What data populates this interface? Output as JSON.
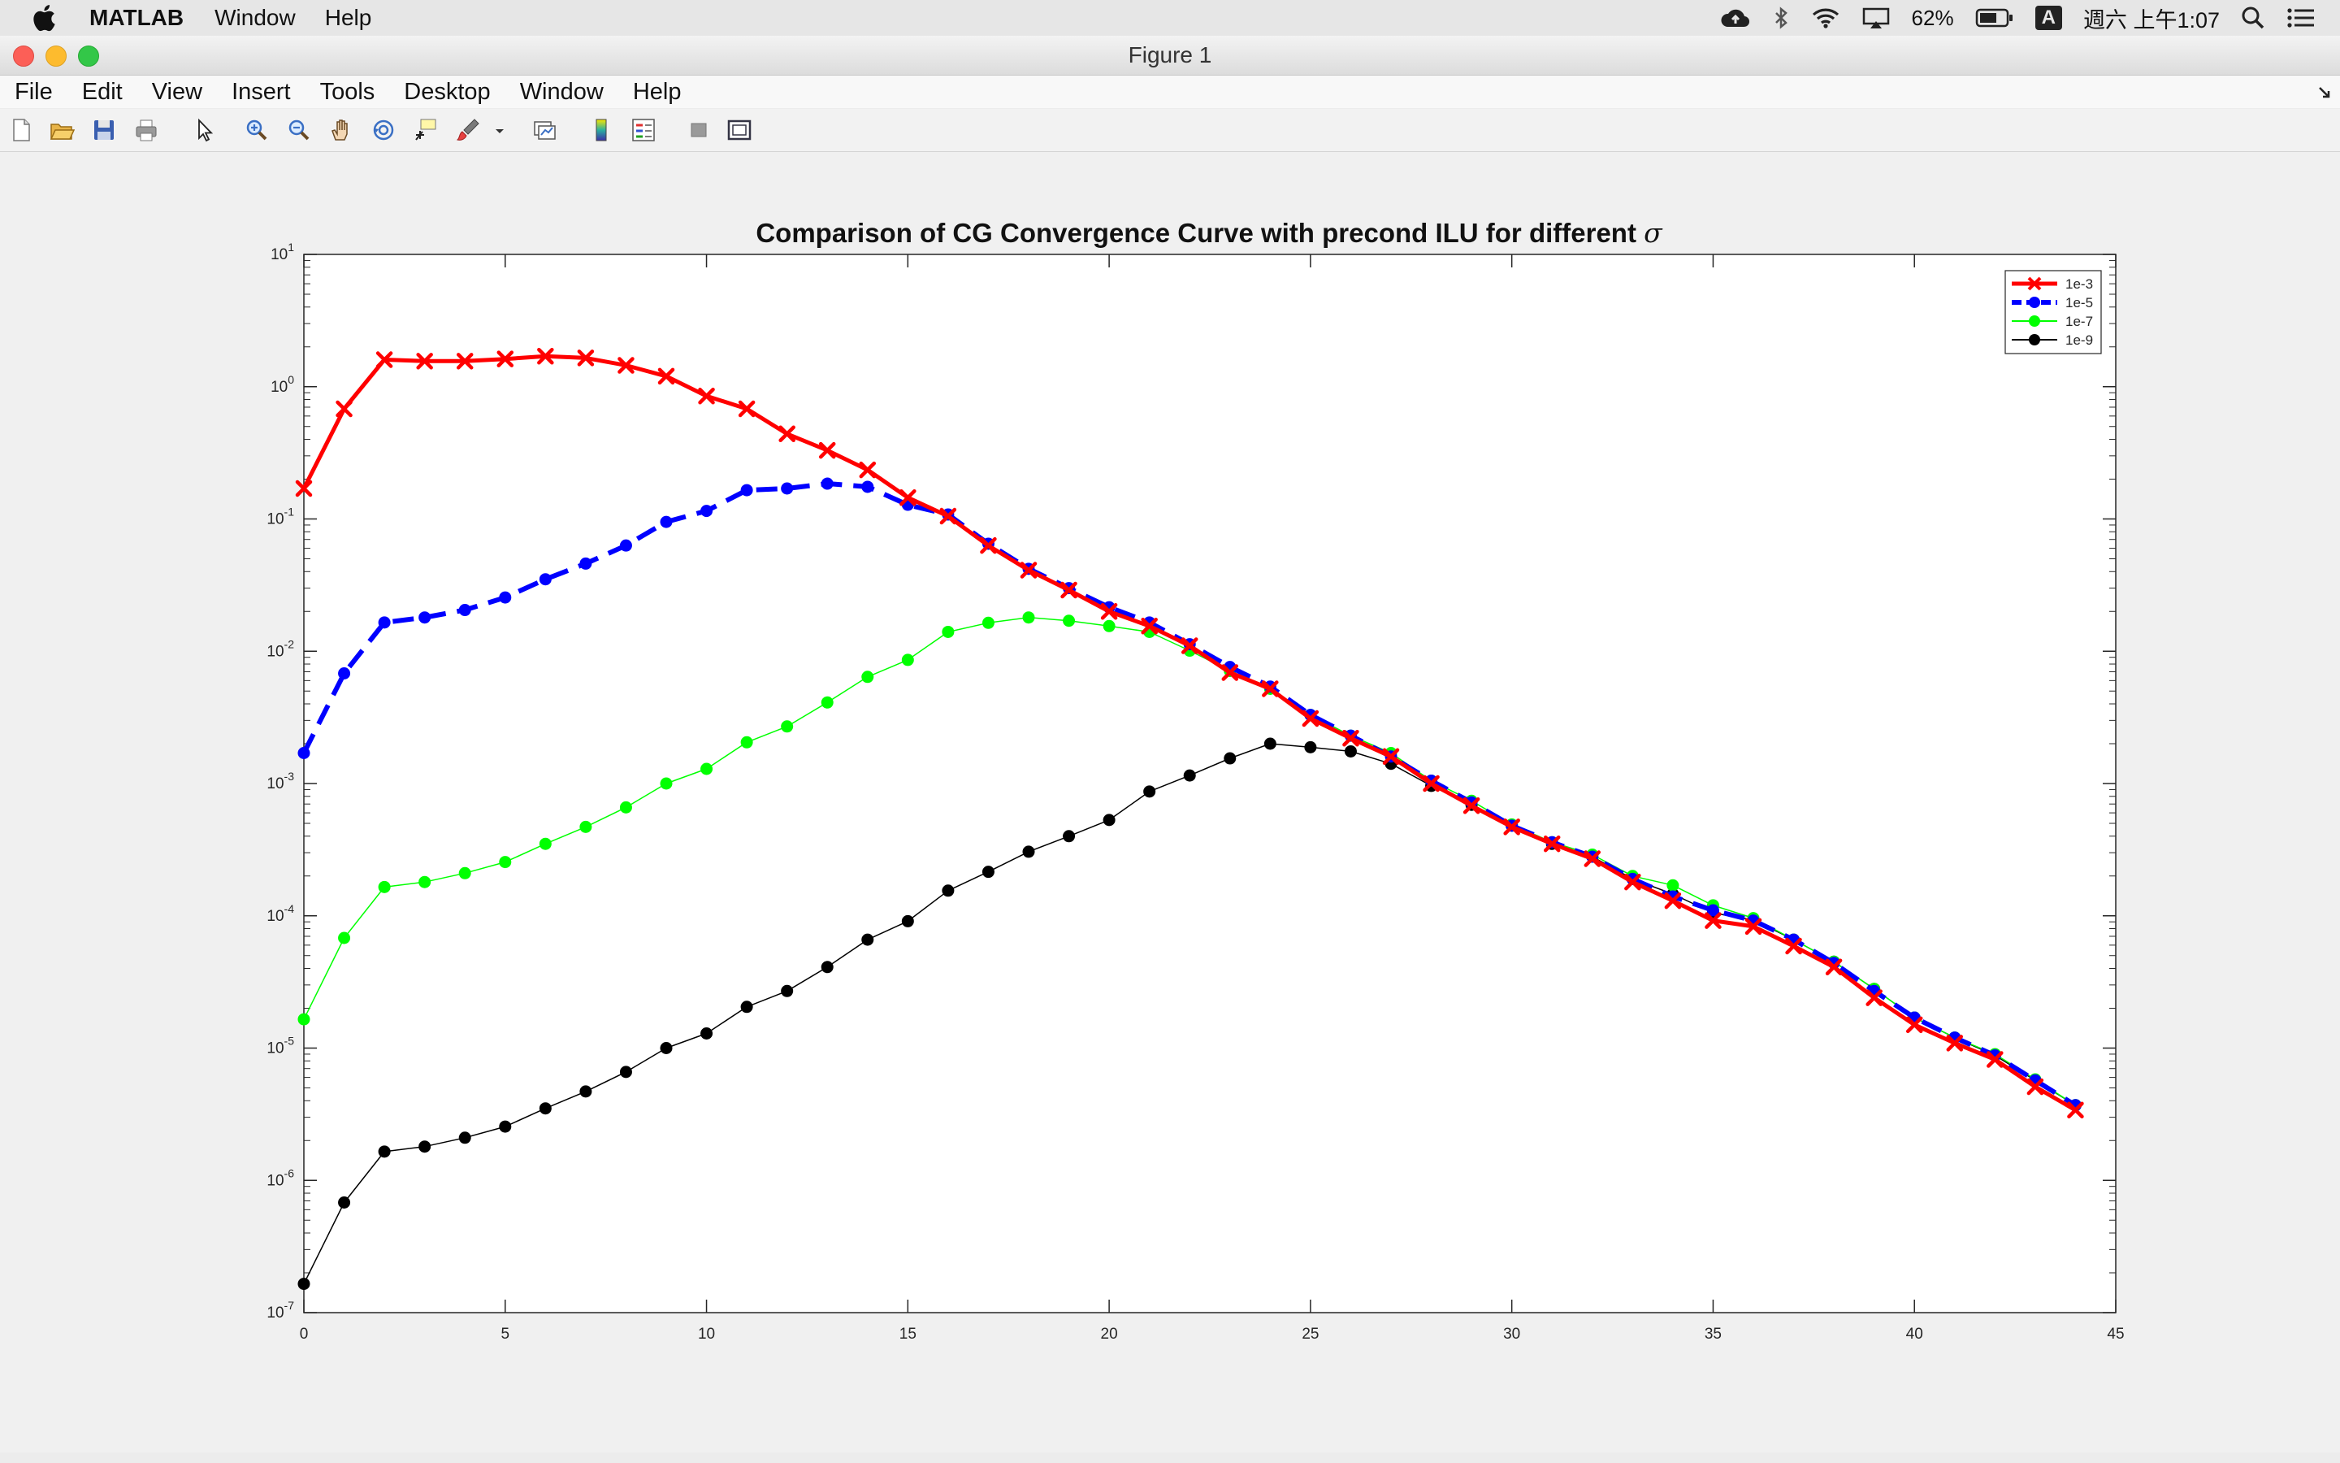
{
  "menubar": {
    "app_name": "MATLAB",
    "items": [
      "Window",
      "Help"
    ],
    "battery": "62%",
    "input_method": "A",
    "clock": "週六 上午1:07"
  },
  "window": {
    "title": "Figure 1"
  },
  "figure_menu": [
    "File",
    "Edit",
    "View",
    "Insert",
    "Tools",
    "Desktop",
    "Window",
    "Help"
  ],
  "toolbar": {
    "icons": [
      "new-figure-icon",
      "open-file-icon",
      "save-icon",
      "print-icon",
      "pointer-icon",
      "zoom-in-icon",
      "zoom-out-icon",
      "pan-hand-icon",
      "rotate-3d-icon",
      "data-cursor-icon",
      "brush-icon",
      "brush-dropdown-icon",
      "link-plot-icon",
      "colorbar-icon",
      "legend-icon",
      "hide-plot-tools-icon",
      "show-plot-tools-icon"
    ]
  },
  "colors": {
    "red": "#ff0000",
    "blue": "#0000ff",
    "green": "#00ff00",
    "black": "#000000"
  },
  "chart_data": {
    "type": "line",
    "title": "Comparison of CG Convergence Curve with precond ILU for different σ",
    "xlabel": "",
    "ylabel": "",
    "yscale": "log",
    "xlim": [
      0,
      45
    ],
    "ylim": [
      1e-07,
      10
    ],
    "xticks": [
      0,
      5,
      10,
      15,
      20,
      25,
      30,
      35,
      40,
      45
    ],
    "yticks": [
      {
        "value": 1e-07,
        "base": "10",
        "exp": "-7"
      },
      {
        "value": 1e-06,
        "base": "10",
        "exp": "-6"
      },
      {
        "value": 1e-05,
        "base": "10",
        "exp": "-5"
      },
      {
        "value": 0.0001,
        "base": "10",
        "exp": "-4"
      },
      {
        "value": 0.001,
        "base": "10",
        "exp": "-3"
      },
      {
        "value": 0.01,
        "base": "10",
        "exp": "-2"
      },
      {
        "value": 0.1,
        "base": "10",
        "exp": "-1"
      },
      {
        "value": 1,
        "base": "10",
        "exp": "0"
      },
      {
        "value": 10,
        "base": "10",
        "exp": "1"
      }
    ],
    "legend_position": "top-right",
    "grid": false,
    "x": [
      0,
      1,
      2,
      3,
      4,
      5,
      6,
      7,
      8,
      9,
      10,
      11,
      12,
      13,
      14,
      15,
      16,
      17,
      18,
      19,
      20,
      21,
      22,
      23,
      24,
      25,
      26,
      27,
      28,
      29,
      30,
      31,
      32,
      33,
      34,
      35,
      36,
      37,
      38,
      39,
      40,
      41,
      42,
      43,
      44
    ],
    "series": [
      {
        "name": "1e-3",
        "color": "#ff0000",
        "marker": "x",
        "line": "solid",
        "width": 5,
        "values": [
          0.17,
          0.68,
          1.6,
          1.56,
          1.56,
          1.62,
          1.7,
          1.65,
          1.45,
          1.2,
          0.85,
          0.68,
          0.44,
          0.33,
          0.235,
          0.145,
          0.105,
          0.063,
          0.041,
          0.029,
          0.02,
          0.0155,
          0.011,
          0.0069,
          0.0052,
          0.0031,
          0.0022,
          0.0016,
          0.001,
          0.00068,
          0.00047,
          0.00035,
          0.00027,
          0.00018,
          0.00013,
          9.2e-05,
          8.3e-05,
          5.9e-05,
          4.1e-05,
          2.4e-05,
          1.5e-05,
          1.09e-05,
          8.2e-06,
          5.1e-06,
          3.4e-06
        ]
      },
      {
        "name": "1e-5",
        "color": "#0000ff",
        "marker": "o",
        "line": "dashed",
        "width": 6,
        "values": [
          0.0017,
          0.0068,
          0.0165,
          0.018,
          0.0205,
          0.0255,
          0.035,
          0.046,
          0.063,
          0.095,
          0.115,
          0.165,
          0.17,
          0.185,
          0.175,
          0.128,
          0.108,
          0.065,
          0.042,
          0.03,
          0.0215,
          0.0165,
          0.0113,
          0.0076,
          0.0054,
          0.0033,
          0.0023,
          0.0016,
          0.00105,
          0.00072,
          0.00048,
          0.00036,
          0.00028,
          0.00019,
          0.00014,
          0.00011,
          9.2e-05,
          6.6e-05,
          4.4e-05,
          2.7e-05,
          1.7e-05,
          1.2e-05,
          8.8e-06,
          5.7e-06,
          3.7e-06
        ]
      },
      {
        "name": "1e-7",
        "color": "#00ff00",
        "marker": "o",
        "line": "solid",
        "width": 1.5,
        "values": [
          1.65e-05,
          6.8e-05,
          0.000165,
          0.00018,
          0.00021,
          0.000255,
          0.00035,
          0.00047,
          0.00066,
          0.001,
          0.00129,
          0.00205,
          0.0027,
          0.0041,
          0.0064,
          0.0086,
          0.014,
          0.0164,
          0.018,
          0.017,
          0.0155,
          0.014,
          0.0101,
          0.0071,
          0.0052,
          0.0033,
          0.0023,
          0.0017,
          0.00105,
          0.00074,
          0.00049,
          0.00036,
          0.00029,
          0.0002,
          0.00017,
          0.00012,
          9.6e-05,
          6.6e-05,
          4.5e-05,
          2.8e-05,
          1.7e-05,
          1.2e-05,
          9e-06,
          5.8e-06,
          3.7e-06
        ]
      },
      {
        "name": "1e-9",
        "color": "#000000",
        "marker": "o",
        "line": "solid",
        "width": 1.5,
        "values": [
          1.65e-07,
          6.8e-07,
          1.65e-06,
          1.8e-06,
          2.1e-06,
          2.55e-06,
          3.5e-06,
          4.7e-06,
          6.6e-06,
          1e-05,
          1.29e-05,
          2.05e-05,
          2.7e-05,
          4.1e-05,
          6.6e-05,
          9.1e-05,
          0.000155,
          0.000215,
          0.000305,
          0.0004,
          0.00053,
          0.00087,
          0.00115,
          0.00155,
          0.002,
          0.00188,
          0.00175,
          0.00141,
          0.00096,
          0.00069,
          0.00048,
          0.00035,
          0.00028,
          0.00019,
          0.000146,
          0.000105,
          9.3e-05,
          6.6e-05,
          4.5e-05,
          2.8e-05,
          1.7e-05,
          1.2e-05,
          8.8e-06,
          5.7e-06,
          3.7e-06
        ]
      }
    ]
  }
}
